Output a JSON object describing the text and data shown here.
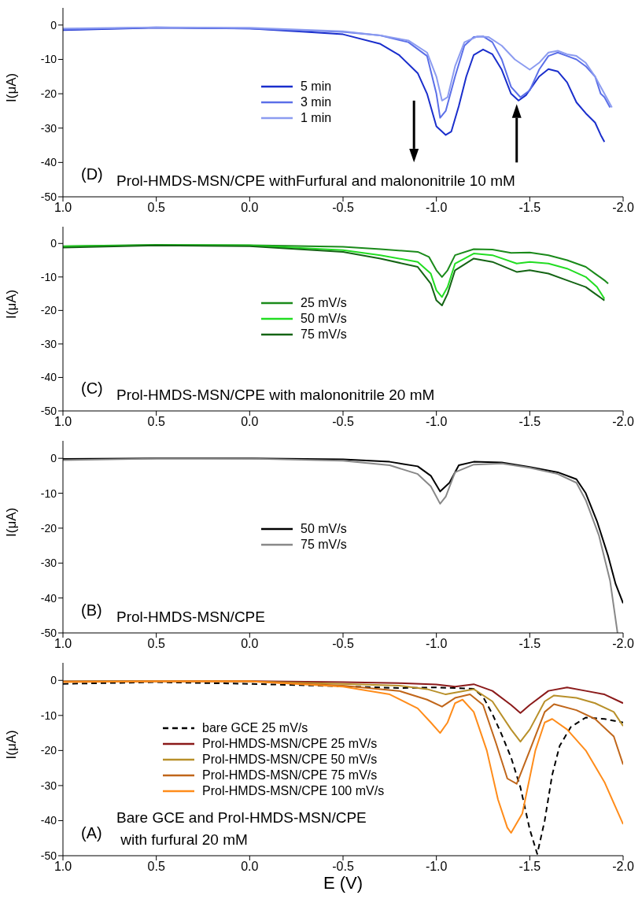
{
  "chart_data": [
    {
      "type": "line",
      "ylabel": "I(μA)",
      "xlim": [
        1,
        -2
      ],
      "ylim": [
        -50,
        5
      ],
      "legend": "center",
      "annotations": [
        "(D)",
        "Prol-HMDS-MSN/CPE withFurfural and malononitrile 10 mM"
      ],
      "xticks": [
        {
          "value": 1,
          "label": "1.0"
        },
        {
          "value": 0.5,
          "label": "0.5"
        },
        {
          "value": 0,
          "label": "0.0"
        },
        {
          "value": -0.5,
          "label": "-0.5"
        },
        {
          "value": -1,
          "label": "-1.0"
        },
        {
          "value": -1.5,
          "label": "-1.5"
        },
        {
          "value": -2,
          "label": "-2.0"
        }
      ],
      "yticks": [
        0,
        -10,
        -20,
        -30,
        -40,
        -50
      ],
      "series": [
        {
          "name": "5 min",
          "color": "#1a2ecc",
          "x": [
            1,
            0.5,
            0,
            -0.3,
            -0.5,
            -0.7,
            -0.8,
            -0.9,
            -0.95,
            -1,
            -1.05,
            -1.08,
            -1.12,
            -1.16,
            -1.2,
            -1.25,
            -1.3,
            -1.35,
            -1.4,
            -1.44,
            -1.48,
            -1.55,
            -1.6,
            -1.65,
            -1.7,
            -1.75,
            -1.8,
            -1.85,
            -1.88,
            -1.9
          ],
          "values": [
            -1.5,
            -0.8,
            -1,
            -2,
            -2.7,
            -5.5,
            -8.7,
            -14,
            -20,
            -29.5,
            -32,
            -31,
            -23.6,
            -15,
            -8.7,
            -7.1,
            -8.5,
            -13,
            -20,
            -22,
            -20.4,
            -15,
            -12.8,
            -13.5,
            -16.7,
            -22.5,
            -25.7,
            -28.4,
            -32,
            -34
          ]
        },
        {
          "name": "3 min",
          "color": "#5b6fe8",
          "x": [
            1,
            0.5,
            0,
            -0.5,
            -0.7,
            -0.85,
            -0.95,
            -1,
            -1.02,
            -1.05,
            -1.1,
            -1.15,
            -1.2,
            -1.25,
            -1.3,
            -1.35,
            -1.4,
            -1.45,
            -1.5,
            -1.55,
            -1.6,
            -1.65,
            -1.7,
            -1.75,
            -1.8,
            -1.85,
            -1.88,
            -1.9,
            -1.93
          ],
          "values": [
            -1.3,
            -0.7,
            -1,
            -2,
            -3,
            -5,
            -9,
            -20,
            -27,
            -25,
            -15,
            -6,
            -3.5,
            -3.3,
            -5,
            -10,
            -18,
            -21,
            -19,
            -13,
            -9,
            -8,
            -9,
            -10,
            -12,
            -15,
            -20,
            -21,
            -24
          ]
        },
        {
          "name": "1 min",
          "color": "#8c9cf0",
          "x": [
            1,
            0.5,
            0,
            -0.5,
            -0.7,
            -0.85,
            -0.95,
            -1,
            -1.03,
            -1.06,
            -1.1,
            -1.15,
            -1.22,
            -1.28,
            -1.35,
            -1.42,
            -1.5,
            -1.55,
            -1.6,
            -1.65,
            -1.7,
            -1.75,
            -1.8,
            -1.85,
            -1.9,
            -1.94
          ],
          "values": [
            -1,
            -0.7,
            -0.8,
            -1.8,
            -3,
            -4.5,
            -8,
            -15,
            -22,
            -21,
            -12,
            -5,
            -3.3,
            -3.5,
            -6,
            -10,
            -13,
            -11,
            -8,
            -7.5,
            -8.5,
            -9,
            -11,
            -15,
            -20,
            -24
          ]
        }
      ]
    },
    {
      "type": "line",
      "ylabel": "I(μA)",
      "xlim": [
        1,
        -2
      ],
      "ylim": [
        -50,
        5
      ],
      "legend": "center",
      "annotations": [
        "(C)",
        "Prol-HMDS-MSN/CPE with malononitrile 20 mM"
      ],
      "xticks": [
        {
          "value": 1,
          "label": "1.0"
        },
        {
          "value": 0.5,
          "label": "0.5"
        },
        {
          "value": 0,
          "label": "0.0"
        },
        {
          "value": -0.5,
          "label": "-0.5"
        },
        {
          "value": -1,
          "label": "-1.0"
        },
        {
          "value": -1.5,
          "label": "-1.5"
        },
        {
          "value": -2,
          "label": "-2.0"
        }
      ],
      "yticks": [
        0,
        -10,
        -20,
        -30,
        -40,
        -50
      ],
      "series": [
        {
          "name": "25 mV/s",
          "color": "#1a8a1a",
          "x": [
            1,
            0.5,
            0,
            -0.5,
            -0.7,
            -0.9,
            -0.96,
            -1,
            -1.03,
            -1.06,
            -1.1,
            -1.2,
            -1.3,
            -1.4,
            -1.5,
            -1.6,
            -1.7,
            -1.8,
            -1.85,
            -1.9,
            -1.92
          ],
          "values": [
            -0.8,
            -0.4,
            -0.5,
            -1,
            -1.7,
            -2.5,
            -4,
            -8,
            -10,
            -8,
            -3.5,
            -1.7,
            -1.8,
            -2.8,
            -2.7,
            -3.5,
            -5,
            -7,
            -9,
            -11,
            -12
          ]
        },
        {
          "name": "50 mV/s",
          "color": "#22dd22",
          "x": [
            1,
            0.5,
            0,
            -0.5,
            -0.7,
            -0.9,
            -0.97,
            -1,
            -1.03,
            -1.06,
            -1.1,
            -1.2,
            -1.3,
            -1.43,
            -1.5,
            -1.6,
            -1.7,
            -1.8,
            -1.86,
            -1.9
          ],
          "values": [
            -0.9,
            -0.5,
            -0.6,
            -2,
            -3.5,
            -5.5,
            -9,
            -14,
            -16,
            -13,
            -6,
            -3,
            -3.5,
            -6,
            -5.5,
            -6,
            -7.5,
            -10,
            -13,
            -16.5
          ]
        },
        {
          "name": "75 mV/s",
          "color": "#146414",
          "x": [
            1,
            0.5,
            0,
            -0.5,
            -0.7,
            -0.9,
            -0.97,
            -1,
            -1.03,
            -1.06,
            -1.1,
            -1.2,
            -1.3,
            -1.43,
            -1.5,
            -1.6,
            -1.7,
            -1.8,
            -1.85,
            -1.9
          ],
          "values": [
            -1.2,
            -0.6,
            -0.8,
            -2.5,
            -4.5,
            -7,
            -12,
            -17,
            -18.5,
            -15,
            -8,
            -4.5,
            -5.5,
            -8.5,
            -8,
            -9,
            -11,
            -13,
            -15,
            -17
          ]
        }
      ]
    },
    {
      "type": "line",
      "ylabel": "I(μA)",
      "xlim": [
        1,
        -2
      ],
      "ylim": [
        -50,
        5
      ],
      "legend": "center",
      "annotations": [
        "(B)",
        "Prol-HMDS-MSN/CPE"
      ],
      "xticks": [
        {
          "value": 1,
          "label": "1.0"
        },
        {
          "value": 0.5,
          "label": "0.5"
        },
        {
          "value": 0,
          "label": "0.0"
        },
        {
          "value": -0.5,
          "label": "-0.5"
        },
        {
          "value": -1,
          "label": "-1.0"
        },
        {
          "value": -1.5,
          "label": "-1.5"
        },
        {
          "value": -2,
          "label": "-2.0"
        }
      ],
      "yticks": [
        0,
        -10,
        -20,
        -30,
        -40,
        -50
      ],
      "series": [
        {
          "name": "50 mV/s",
          "color": "#000000",
          "x": [
            1,
            0.5,
            0,
            -0.5,
            -0.75,
            -0.9,
            -0.97,
            -1.02,
            -1.07,
            -1.12,
            -1.2,
            -1.35,
            -1.5,
            -1.65,
            -1.75,
            -1.8,
            -1.86,
            -1.92,
            -1.96,
            -2
          ],
          "values": [
            -0.2,
            0,
            0,
            -0.3,
            -1,
            -2.3,
            -5,
            -9.5,
            -7,
            -2,
            -1,
            -1.2,
            -2.5,
            -4,
            -6,
            -10,
            -18,
            -28,
            -36,
            -41.5
          ]
        },
        {
          "name": "75 mV/s",
          "color": "#888888",
          "x": [
            1,
            0.5,
            0,
            -0.5,
            -0.75,
            -0.9,
            -0.97,
            -1.02,
            -1.05,
            -1.1,
            -1.2,
            -1.35,
            -1.5,
            -1.65,
            -1.75,
            -1.8,
            -1.87,
            -1.93,
            -1.97
          ],
          "values": [
            -0.5,
            -0.1,
            -0.1,
            -0.7,
            -2,
            -4.5,
            -8,
            -13,
            -11,
            -4,
            -1.8,
            -1.5,
            -2.7,
            -4.5,
            -7,
            -12,
            -22,
            -35,
            -50
          ]
        }
      ]
    },
    {
      "type": "line",
      "ylabel": "I(μA)",
      "xlabel": "E (V)",
      "xlim": [
        1,
        -2
      ],
      "ylim": [
        -50,
        5
      ],
      "legend": "center left",
      "annotations": [
        "(A)",
        "Bare GCE and Prol-HMDS-MSN/CPE\n with furfural 20 mM"
      ],
      "xticks": [
        {
          "value": 1,
          "label": "1.0"
        },
        {
          "value": 0.5,
          "label": "0.5"
        },
        {
          "value": 0,
          "label": "0.0"
        },
        {
          "value": -0.5,
          "label": "-0.5"
        },
        {
          "value": -1,
          "label": "-1.0"
        },
        {
          "value": -1.5,
          "label": "-1.5"
        },
        {
          "value": -2,
          "label": "-2.0"
        }
      ],
      "yticks": [
        0,
        -10,
        -20,
        -30,
        -40,
        -50
      ],
      "series": [
        {
          "name": "bare GCE  25 mV/s",
          "color": "#000000",
          "line_style": "dashed",
          "x": [
            1,
            0.5,
            0,
            -0.5,
            -0.8,
            -1,
            -1.2,
            -1.25,
            -1.3,
            -1.35,
            -1.4,
            -1.45,
            -1.5,
            -1.54,
            -1.58,
            -1.62,
            -1.66,
            -1.72,
            -1.8,
            -1.9,
            -2
          ],
          "values": [
            -1,
            -0.5,
            -1,
            -1.7,
            -2.2,
            -2,
            -2.4,
            -4.7,
            -9.6,
            -15.5,
            -22,
            -30.5,
            -42.5,
            -49.5,
            -40,
            -27,
            -18.7,
            -13.3,
            -10.6,
            -11,
            -12
          ]
        },
        {
          "name": "Prol-HMDS-MSN/CPE 25 mV/s",
          "color": "#8b1a1a",
          "x": [
            1,
            0.5,
            0,
            -0.5,
            -0.8,
            -1,
            -1.1,
            -1.2,
            -1.3,
            -1.4,
            -1.45,
            -1.5,
            -1.6,
            -1.7,
            -1.8,
            -1.9,
            -2
          ],
          "values": [
            -0.3,
            -0.2,
            -0.2,
            -0.5,
            -0.8,
            -1.2,
            -1.8,
            -1.1,
            -3,
            -7,
            -9.3,
            -7,
            -3,
            -2,
            -3,
            -4,
            -6.5
          ]
        },
        {
          "name": "Prol-HMDS-MSN/CPE 50 mV/s",
          "color": "#b8902a",
          "x": [
            1,
            0.5,
            0,
            -0.5,
            -0.8,
            -0.95,
            -1.05,
            -1.2,
            -1.3,
            -1.4,
            -1.45,
            -1.5,
            -1.58,
            -1.63,
            -1.75,
            -1.85,
            -1.95,
            -2
          ],
          "values": [
            -0.3,
            -0.2,
            -0.3,
            -1,
            -1.5,
            -2.5,
            -4,
            -2.5,
            -6,
            -14,
            -17.5,
            -14,
            -6,
            -4.3,
            -5,
            -6.5,
            -9,
            -13
          ]
        },
        {
          "name": "Prol-HMDS-MSN/CPE 75 mV/s",
          "color": "#c0661a",
          "x": [
            1,
            0.5,
            0,
            -0.5,
            -0.8,
            -0.95,
            -1.03,
            -1.1,
            -1.18,
            -1.25,
            -1.32,
            -1.38,
            -1.43,
            -1.5,
            -1.58,
            -1.63,
            -1.75,
            -1.85,
            -1.95,
            -2
          ],
          "values": [
            -0.4,
            -0.3,
            -0.3,
            -1.5,
            -3,
            -5.5,
            -7.5,
            -5,
            -4,
            -7,
            -18,
            -28,
            -29.5,
            -20,
            -9,
            -6.8,
            -8.5,
            -11,
            -16,
            -24
          ]
        },
        {
          "name": "Prol-HMDS-MSN/CPE 100 mV/s",
          "color": "#ff8c1a",
          "x": [
            1,
            0.5,
            0,
            -0.5,
            -0.75,
            -0.9,
            -0.97,
            -1.02,
            -1.06,
            -1.1,
            -1.14,
            -1.2,
            -1.27,
            -1.33,
            -1.38,
            -1.4,
            -1.46,
            -1.53,
            -1.58,
            -1.62,
            -1.7,
            -1.8,
            -1.9,
            -2
          ],
          "values": [
            -0.5,
            -0.3,
            -0.3,
            -1.8,
            -4,
            -8,
            -12,
            -15,
            -12,
            -6.5,
            -5.5,
            -9,
            -20,
            -34,
            -42,
            -43.5,
            -38,
            -20,
            -12,
            -11,
            -14,
            -20,
            -29,
            -41
          ]
        }
      ]
    }
  ]
}
